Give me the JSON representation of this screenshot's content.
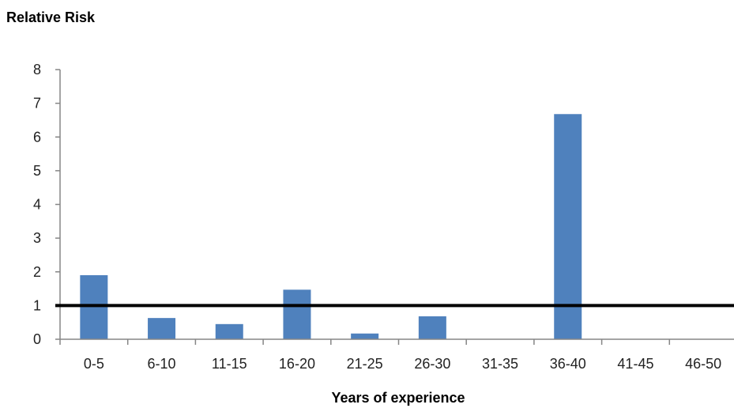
{
  "chart_data": {
    "type": "bar",
    "title": "",
    "ylabel": "Relative Risk",
    "xlabel": "Years of experience",
    "categories": [
      "0-5",
      "6-10",
      "11-15",
      "16-20",
      "21-25",
      "26-30",
      "31-35",
      "36-40",
      "41-45",
      "46-50"
    ],
    "values": [
      1.9,
      0.63,
      0.45,
      1.47,
      0.17,
      0.68,
      0,
      6.68,
      0,
      0
    ],
    "ylim": [
      0,
      8
    ],
    "yticks": [
      "0",
      "1",
      "2",
      "3",
      "4",
      "5",
      "6",
      "7",
      "8"
    ],
    "reference_line": {
      "y": 1
    },
    "grid": false,
    "legend": "none",
    "colors": {
      "bar": "#4F81BD",
      "reference_line": "#000000",
      "axis": "#868686"
    }
  }
}
